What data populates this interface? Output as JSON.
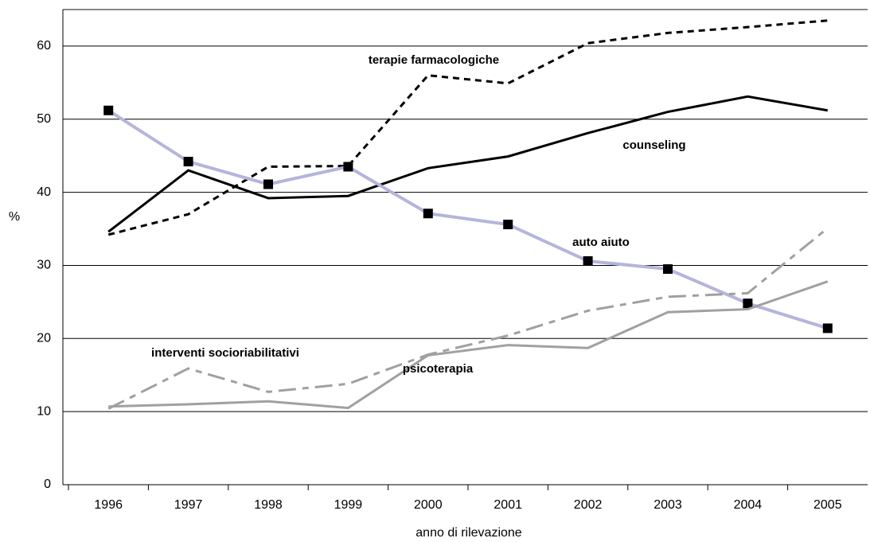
{
  "chart_data": {
    "type": "line",
    "y_label": "%",
    "x_label": "anno di rilevazione",
    "categories": [
      "1996",
      "1997",
      "1998",
      "1999",
      "2000",
      "2001",
      "2002",
      "2003",
      "2004",
      "2005"
    ],
    "ylim": [
      0,
      65
    ],
    "yticks": [
      0,
      10,
      20,
      30,
      40,
      50,
      60
    ],
    "grid": true,
    "series": [
      {
        "name": "terapie farmacologiche",
        "color": "#000000",
        "dash": "dashed",
        "values": [
          34.2,
          37.0,
          43.5,
          43.6,
          56.0,
          54.9,
          60.4,
          61.8,
          62.6,
          63.5
        ]
      },
      {
        "name": "counseling",
        "color": "#000000",
        "dash": "solid",
        "values": [
          34.6,
          43.0,
          39.2,
          39.5,
          43.3,
          44.9,
          48.1,
          51.0,
          53.1,
          51.2
        ]
      },
      {
        "name": "auto aiuto",
        "color": "#b4b4dc",
        "dash": "solid",
        "marker": "square",
        "values": [
          51.2,
          44.2,
          41.1,
          43.5,
          37.1,
          35.6,
          30.6,
          29.5,
          24.8,
          21.4
        ]
      },
      {
        "name": "interventi socioriabilitativi",
        "color": "#a0a0a0",
        "dash": "dashdot",
        "values": [
          10.4,
          15.9,
          12.7,
          13.8,
          17.8,
          20.4,
          23.8,
          25.7,
          26.2,
          35.1
        ]
      },
      {
        "name": "psicoterapia",
        "color": "#a0a0a0",
        "dash": "solid",
        "values": [
          10.7,
          11.0,
          11.4,
          10.5,
          17.7,
          19.1,
          18.7,
          23.6,
          24.0,
          27.8
        ]
      }
    ]
  }
}
